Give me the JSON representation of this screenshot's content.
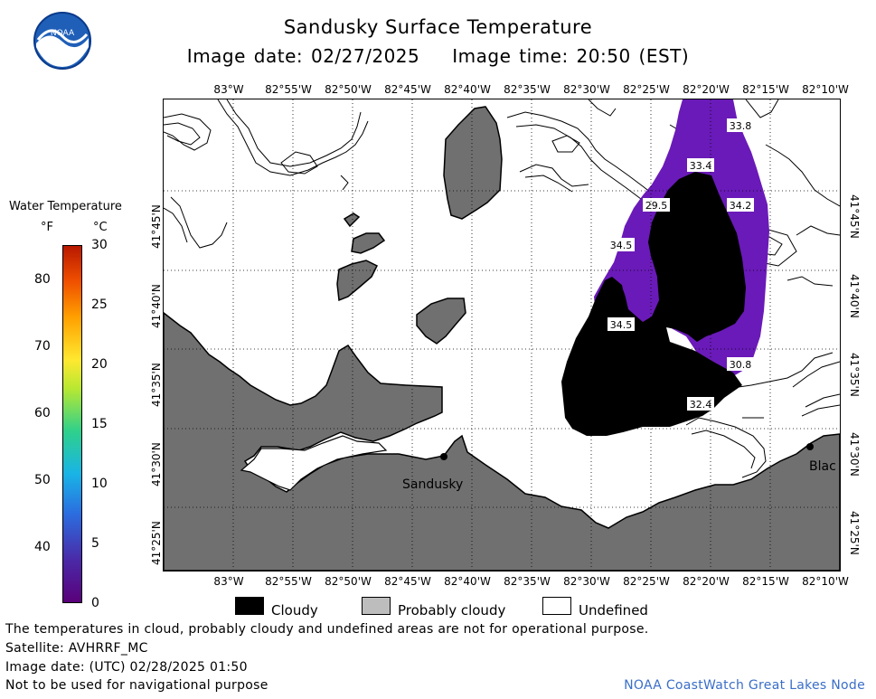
{
  "header": {
    "title": "Sandusky Surface Temperature",
    "image_date_label": "Image date: 02/27/2025",
    "image_time_label": "Image time: 20:50 (EST)"
  },
  "axes": {
    "lon_top": [
      "83°W",
      "82°55'W",
      "82°50'W",
      "82°45'W",
      "82°40'W",
      "82°35'W",
      "82°30'W",
      "82°25'W",
      "82°20'W",
      "82°15'W",
      "82°10'W"
    ],
    "lon_bottom": [
      "83°W",
      "82°55'W",
      "82°50'W",
      "82°45'W",
      "82°40'W",
      "82°35'W",
      "82°30'W",
      "82°25'W",
      "82°20'W",
      "82°15'W",
      "82°10'W"
    ],
    "lat_left": [
      "41°45'N",
      "41°40'N",
      "41°35'N",
      "41°30'N",
      "41°25'N"
    ],
    "lat_right": [
      "41°45'N",
      "41°40'N",
      "41°35'N",
      "41°30'N",
      "41°25'N"
    ]
  },
  "color_scale": {
    "title": "Water Temperature",
    "unit_f": "°F",
    "unit_c": "°C",
    "f_ticks": [
      "80",
      "70",
      "60",
      "50",
      "40"
    ],
    "c_ticks": [
      "30",
      "25",
      "20",
      "15",
      "10",
      "5",
      "0"
    ]
  },
  "map": {
    "temperature_labels": [
      "33.8",
      "33.4",
      "29.5",
      "34.2",
      "34.5",
      "34.5",
      "30.8",
      "32.4"
    ],
    "cities": [
      "Sandusky",
      "Blac"
    ],
    "colors": {
      "land": "#707070",
      "water": "#ffffff",
      "cloud": "#000000",
      "temperature_fill": "#6a1ab8"
    }
  },
  "legend": {
    "cloudy": "Cloudy",
    "probably_cloudy": "Probably cloudy",
    "undefined": "Undefined"
  },
  "footer": {
    "disclaimer": "The temperatures in cloud, probably cloudy and undefined areas are not for operational purpose.",
    "satellite": "Satellite: AVHRRF_MC",
    "utc_date": "Image date: (UTC) 02/28/2025  01:50",
    "nav_warning": "Not to be used for navigational purpose",
    "credit": "NOAA CoastWatch Great Lakes Node"
  },
  "logo": {
    "text": "NOAA"
  }
}
